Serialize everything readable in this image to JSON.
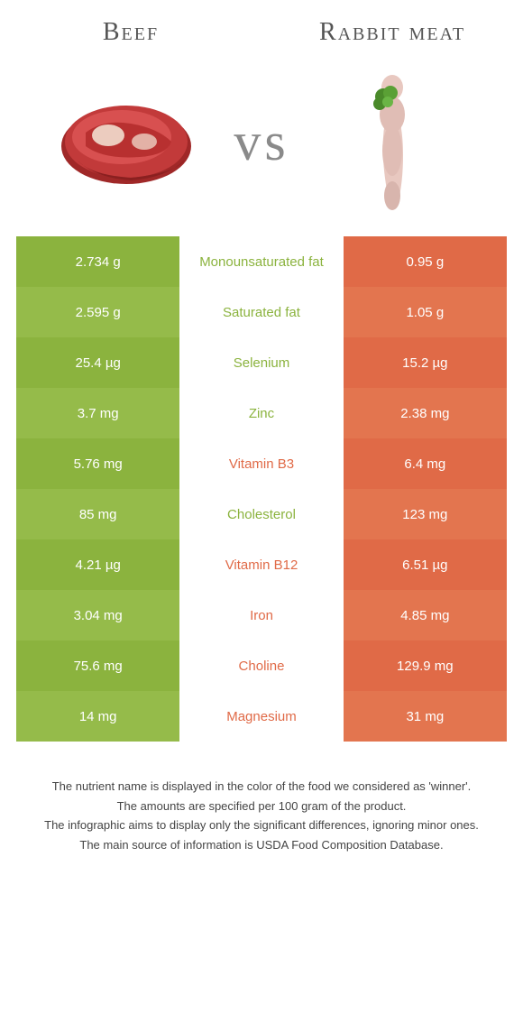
{
  "header": {
    "left": "Beef",
    "right": "Rabbit meat"
  },
  "vs": "vs",
  "colors": {
    "beef": "#8bb33e",
    "beef_alt": "#95bb4a",
    "rabbit": "#e06a47",
    "rabbit_alt": "#e3754f",
    "mid_beef_text": "#8bb33e",
    "mid_rabbit_text": "#e06a47"
  },
  "rows": [
    {
      "left": "2.734 g",
      "mid": "Monounsaturated fat",
      "right": "0.95 g",
      "winner": "beef"
    },
    {
      "left": "2.595 g",
      "mid": "Saturated fat",
      "right": "1.05 g",
      "winner": "beef"
    },
    {
      "left": "25.4 µg",
      "mid": "Selenium",
      "right": "15.2 µg",
      "winner": "beef"
    },
    {
      "left": "3.7 mg",
      "mid": "Zinc",
      "right": "2.38 mg",
      "winner": "beef"
    },
    {
      "left": "5.76 mg",
      "mid": "Vitamin B3",
      "right": "6.4 mg",
      "winner": "rabbit"
    },
    {
      "left": "85 mg",
      "mid": "Cholesterol",
      "right": "123 mg",
      "winner": "beef"
    },
    {
      "left": "4.21 µg",
      "mid": "Vitamin B12",
      "right": "6.51 µg",
      "winner": "rabbit"
    },
    {
      "left": "3.04 mg",
      "mid": "Iron",
      "right": "4.85 mg",
      "winner": "rabbit"
    },
    {
      "left": "75.6 mg",
      "mid": "Choline",
      "right": "129.9 mg",
      "winner": "rabbit"
    },
    {
      "left": "14 mg",
      "mid": "Magnesium",
      "right": "31 mg",
      "winner": "rabbit"
    }
  ],
  "footer": [
    "The nutrient name is displayed in the color of the food we considered as 'winner'.",
    "The amounts are specified per 100 gram of the product.",
    "The infographic aims to display only the significant differences, ignoring minor ones.",
    "The main source of information is USDA Food Composition Database."
  ]
}
